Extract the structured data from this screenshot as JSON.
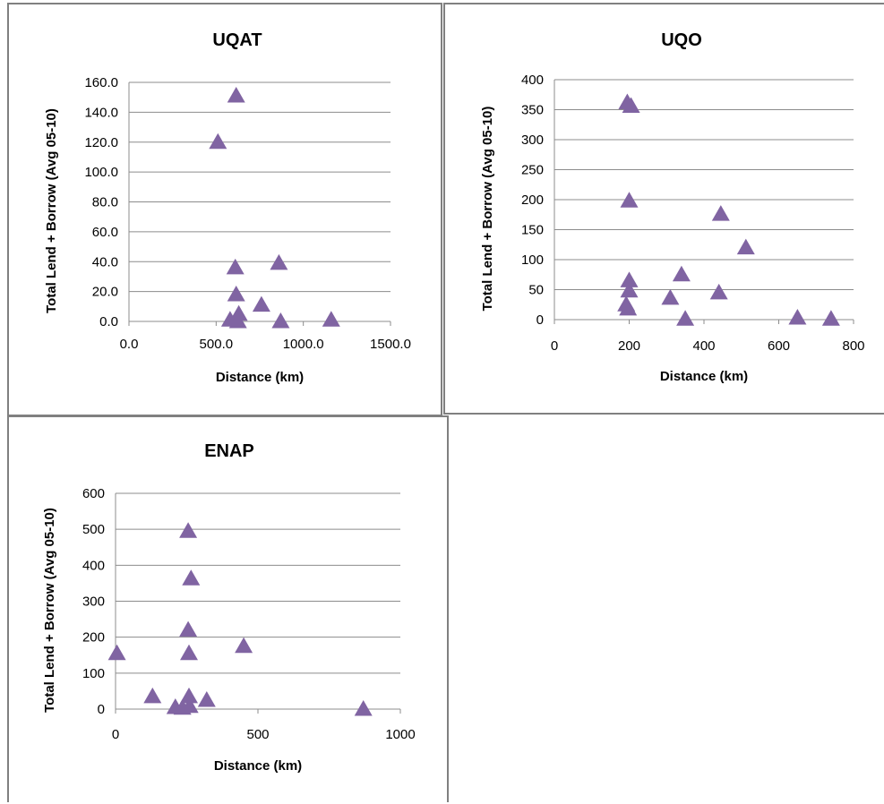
{
  "marker_color": "#8064a2",
  "chart_data": [
    {
      "type": "scatter",
      "title": "UQAT",
      "xlabel": "Distance (km)",
      "ylabel": "Total Lend + Borrow (Avg 05-10)",
      "xlim": [
        0,
        1500
      ],
      "ylim": [
        0,
        160
      ],
      "x_ticks": [
        "0.0",
        "500.0",
        "1000.0",
        "1500.0"
      ],
      "y_ticks": [
        "0.0",
        "20.0",
        "40.0",
        "60.0",
        "80.0",
        "100.0",
        "120.0",
        "140.0",
        "160.0"
      ],
      "marker": "triangle",
      "grid": "horizontal",
      "legend": "none",
      "points": [
        {
          "x": 615,
          "y": 151
        },
        {
          "x": 510,
          "y": 120
        },
        {
          "x": 610,
          "y": 36
        },
        {
          "x": 860,
          "y": 39
        },
        {
          "x": 615,
          "y": 18
        },
        {
          "x": 760,
          "y": 11
        },
        {
          "x": 630,
          "y": 5
        },
        {
          "x": 580,
          "y": 1
        },
        {
          "x": 625,
          "y": 0
        },
        {
          "x": 870,
          "y": 0
        },
        {
          "x": 1160,
          "y": 1
        }
      ]
    },
    {
      "type": "scatter",
      "title": "UQO",
      "xlabel": "Distance (km)",
      "ylabel": "Total Lend + Borrow (Avg 05-10)",
      "xlim": [
        0,
        800
      ],
      "ylim": [
        0,
        400
      ],
      "x_ticks": [
        "0",
        "200",
        "400",
        "600",
        "800"
      ],
      "y_ticks": [
        "0",
        "50",
        "100",
        "150",
        "200",
        "250",
        "300",
        "350",
        "400"
      ],
      "marker": "triangle",
      "grid": "horizontal",
      "legend": "none",
      "points": [
        {
          "x": 195,
          "y": 362
        },
        {
          "x": 205,
          "y": 356
        },
        {
          "x": 200,
          "y": 198
        },
        {
          "x": 445,
          "y": 176
        },
        {
          "x": 512,
          "y": 120
        },
        {
          "x": 340,
          "y": 75
        },
        {
          "x": 200,
          "y": 65
        },
        {
          "x": 200,
          "y": 48
        },
        {
          "x": 440,
          "y": 45
        },
        {
          "x": 310,
          "y": 36
        },
        {
          "x": 192,
          "y": 25
        },
        {
          "x": 197,
          "y": 18
        },
        {
          "x": 350,
          "y": 1
        },
        {
          "x": 650,
          "y": 3
        },
        {
          "x": 740,
          "y": 1
        }
      ]
    },
    {
      "type": "scatter",
      "title": "ENAP",
      "xlabel": "Distance (km)",
      "ylabel": "Total Lend + Borrow (Avg 05-10)",
      "xlim": [
        0,
        1000
      ],
      "ylim": [
        0,
        600
      ],
      "x_ticks": [
        "0",
        "500",
        "1000"
      ],
      "y_ticks": [
        "0",
        "100",
        "200",
        "300",
        "400",
        "500",
        "600"
      ],
      "marker": "triangle",
      "grid": "horizontal",
      "legend": "none",
      "points": [
        {
          "x": 255,
          "y": 495
        },
        {
          "x": 265,
          "y": 363
        },
        {
          "x": 255,
          "y": 220
        },
        {
          "x": 450,
          "y": 175
        },
        {
          "x": 5,
          "y": 155
        },
        {
          "x": 258,
          "y": 155
        },
        {
          "x": 130,
          "y": 35
        },
        {
          "x": 258,
          "y": 35
        },
        {
          "x": 320,
          "y": 25
        },
        {
          "x": 210,
          "y": 5
        },
        {
          "x": 235,
          "y": 3
        },
        {
          "x": 260,
          "y": 8
        },
        {
          "x": 870,
          "y": 0
        }
      ]
    }
  ]
}
